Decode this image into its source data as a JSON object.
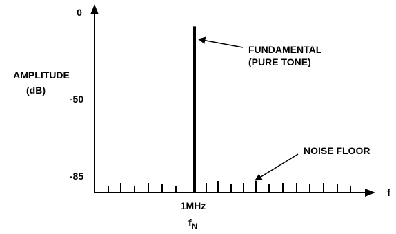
{
  "chart_data": {
    "type": "bar",
    "ylabel": [
      "AMPLITUDE",
      "(dB)"
    ],
    "xlabel": "f",
    "y_ticks": [
      {
        "value": 0,
        "label": "0"
      },
      {
        "value": -50,
        "label": "-50"
      },
      {
        "value": -85,
        "label": "-85"
      }
    ],
    "ylim": [
      -100,
      0
    ],
    "fundamental": {
      "frequency_label": "1MHz",
      "symbol": "f",
      "symbol_subscript": "N",
      "amplitude_db": -7
    },
    "noise_floor_db": -85,
    "annotations": [
      {
        "id": "fundamental",
        "lines": [
          "FUNDAMENTAL",
          "(PURE TONE)"
        ]
      },
      {
        "id": "noise",
        "lines": [
          "NOISE FLOOR"
        ]
      }
    ]
  }
}
